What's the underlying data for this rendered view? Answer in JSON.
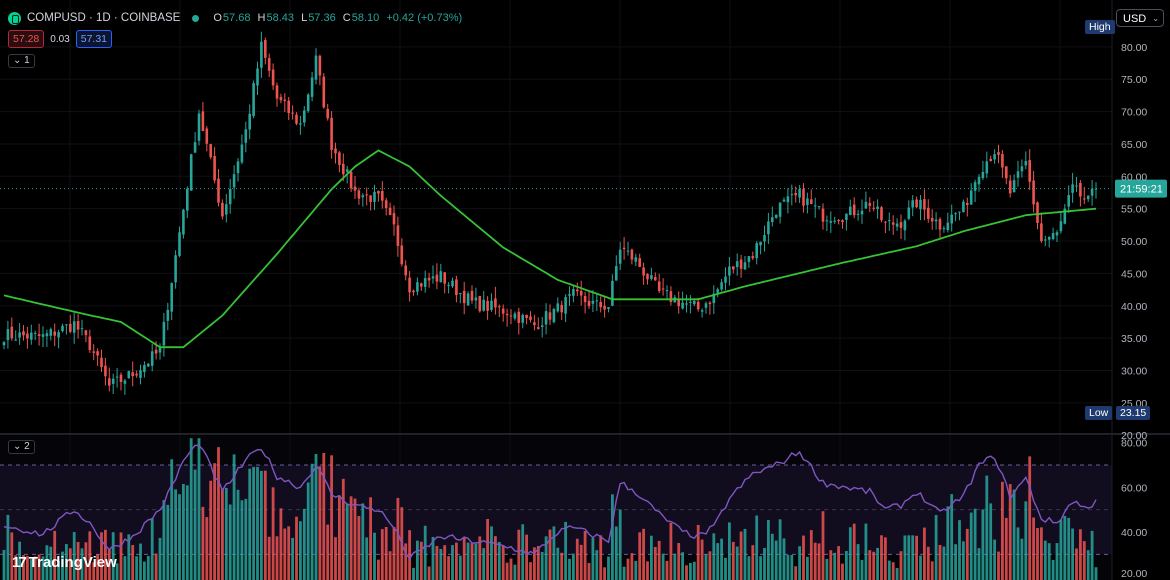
{
  "header": {
    "symbol": "COMPUSD · 1D · COINBASE",
    "open_label": "O",
    "open": "57.68",
    "high_label": "H",
    "high": "58.43",
    "low_label": "L",
    "low": "57.36",
    "close_label": "C",
    "close": "58.10",
    "change": "+0.42 (+0.73%)",
    "bid": "57.28",
    "spread": "0.03",
    "ask": "57.31",
    "pane1_tag": "1",
    "pane2_tag": "2",
    "chevron_icon": "chevron-down-icon",
    "logo_icon": "compound-logo-icon"
  },
  "currency": "USD",
  "high_label": "High",
  "low_label": "Low",
  "low_value": "23.15",
  "countdown": "21:59:21",
  "branding": "TradingView",
  "colors": {
    "up": "#26a69a",
    "down": "#ef5350",
    "ma": "#35c335",
    "rsi": "#7e57c2",
    "bg": "#000000"
  },
  "chart_data": [
    {
      "type": "candlestick",
      "title": "",
      "y_ticks": [
        "20.00",
        "25.00",
        "30.00",
        "35.00",
        "40.00",
        "45.00",
        "50.00",
        "55.00",
        "60.00",
        "65.00",
        "70.00",
        "75.00",
        "80.00"
      ],
      "ylim": [
        20.5,
        86
      ],
      "last_price": 58.1,
      "low": 23.15,
      "keypoints_close": [
        [
          0,
          35.5
        ],
        [
          10,
          35.2
        ],
        [
          18,
          37.2
        ],
        [
          22,
          34
        ],
        [
          27,
          27.5
        ],
        [
          33,
          29.5
        ],
        [
          40,
          33
        ],
        [
          43,
          44
        ],
        [
          46,
          55
        ],
        [
          50,
          70
        ],
        [
          56,
          54
        ],
        [
          62,
          67
        ],
        [
          66,
          80
        ],
        [
          70,
          72
        ],
        [
          76,
          68
        ],
        [
          80,
          78
        ],
        [
          84,
          65
        ],
        [
          90,
          57.5
        ],
        [
          96,
          56.5
        ],
        [
          100,
          52
        ],
        [
          104,
          43
        ],
        [
          112,
          44.5
        ],
        [
          120,
          40.5
        ],
        [
          130,
          39
        ],
        [
          136,
          37
        ],
        [
          142,
          39.5
        ],
        [
          146,
          41.5
        ],
        [
          152,
          40
        ],
        [
          155,
          40
        ],
        [
          158,
          49
        ],
        [
          162,
          47
        ],
        [
          168,
          42
        ],
        [
          174,
          40.5
        ],
        [
          178,
          39.5
        ],
        [
          182,
          41.5
        ],
        [
          186,
          45.5
        ],
        [
          192,
          48
        ],
        [
          198,
          55
        ],
        [
          204,
          57
        ],
        [
          210,
          54
        ],
        [
          216,
          54
        ],
        [
          222,
          56
        ],
        [
          226,
          52.5
        ],
        [
          230,
          53
        ],
        [
          234,
          56
        ],
        [
          240,
          52.5
        ],
        [
          246,
          55
        ],
        [
          250,
          61
        ],
        [
          254,
          64
        ],
        [
          258,
          57.5
        ],
        [
          262,
          62
        ],
        [
          266,
          50
        ],
        [
          270,
          51
        ],
        [
          274,
          58
        ],
        [
          278,
          56
        ],
        [
          280,
          58.1
        ]
      ],
      "ma_points": [
        [
          0,
          41.6
        ],
        [
          20,
          38.8
        ],
        [
          30,
          37.5
        ],
        [
          40,
          33.6
        ],
        [
          46,
          33.6
        ],
        [
          56,
          38.5
        ],
        [
          70,
          48
        ],
        [
          84,
          58
        ],
        [
          90,
          61.5
        ],
        [
          96,
          64
        ],
        [
          104,
          61.5
        ],
        [
          112,
          57
        ],
        [
          128,
          49
        ],
        [
          142,
          44
        ],
        [
          156,
          41
        ],
        [
          178,
          41
        ],
        [
          190,
          43
        ],
        [
          214,
          46.5
        ],
        [
          234,
          49.2
        ],
        [
          246,
          51.5
        ],
        [
          262,
          54
        ],
        [
          280,
          55
        ]
      ]
    },
    {
      "type": "volume_rsi",
      "y_ticks": [
        "20.00",
        "40.00",
        "60.00",
        "80.00"
      ],
      "ylim": [
        18.5,
        83
      ],
      "bands": [
        30,
        50,
        70
      ],
      "rsi_keypoints": [
        [
          0,
          43
        ],
        [
          10,
          39
        ],
        [
          18,
          50
        ],
        [
          22,
          44
        ],
        [
          27,
          32
        ],
        [
          33,
          38
        ],
        [
          40,
          50
        ],
        [
          43,
          60
        ],
        [
          46,
          72
        ],
        [
          50,
          80
        ],
        [
          56,
          58
        ],
        [
          62,
          72
        ],
        [
          66,
          78
        ],
        [
          70,
          65
        ],
        [
          76,
          60
        ],
        [
          80,
          70
        ],
        [
          84,
          57
        ],
        [
          90,
          52
        ],
        [
          96,
          50
        ],
        [
          100,
          42
        ],
        [
          104,
          28
        ],
        [
          112,
          38
        ],
        [
          120,
          36
        ],
        [
          130,
          33
        ],
        [
          136,
          30
        ],
        [
          142,
          40
        ],
        [
          146,
          42
        ],
        [
          152,
          38
        ],
        [
          155,
          36
        ],
        [
          158,
          62
        ],
        [
          162,
          58
        ],
        [
          168,
          48
        ],
        [
          174,
          40
        ],
        [
          178,
          38
        ],
        [
          182,
          42
        ],
        [
          186,
          55
        ],
        [
          192,
          66
        ],
        [
          198,
          70
        ],
        [
          204,
          76
        ],
        [
          210,
          62
        ],
        [
          216,
          60
        ],
        [
          222,
          58
        ],
        [
          226,
          50
        ],
        [
          230,
          52
        ],
        [
          234,
          58
        ],
        [
          240,
          48
        ],
        [
          246,
          56
        ],
        [
          250,
          70
        ],
        [
          254,
          74
        ],
        [
          258,
          56
        ],
        [
          262,
          64
        ],
        [
          266,
          46
        ],
        [
          270,
          44
        ],
        [
          274,
          54
        ],
        [
          278,
          50
        ],
        [
          280,
          55
        ]
      ]
    }
  ]
}
